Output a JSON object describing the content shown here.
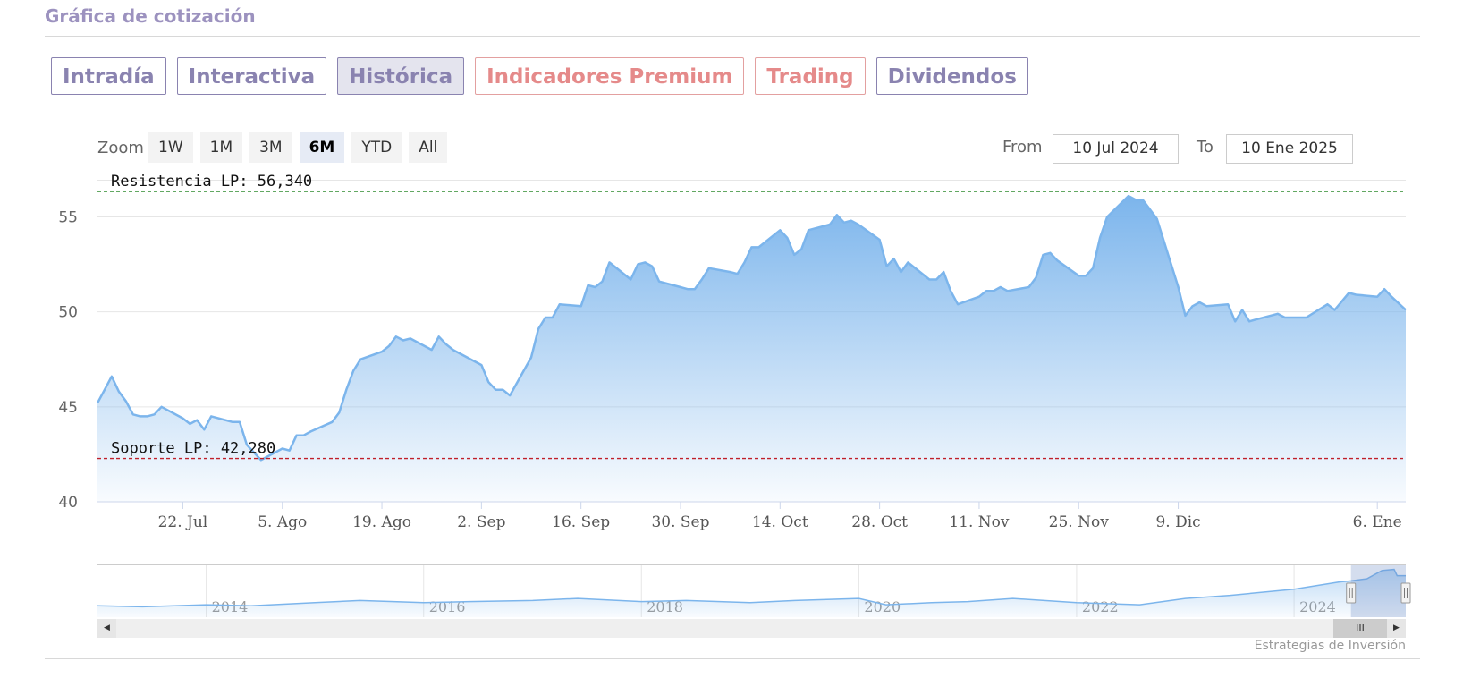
{
  "section": {
    "title": "Gráfica de cotización"
  },
  "tabs": [
    {
      "label": "Intradía",
      "style": "normal"
    },
    {
      "label": "Interactiva",
      "style": "normal"
    },
    {
      "label": "Histórica",
      "style": "active"
    },
    {
      "label": "Indicadores Premium",
      "style": "premium"
    },
    {
      "label": "Trading",
      "style": "premium"
    },
    {
      "label": "Dividendos",
      "style": "normal"
    }
  ],
  "zoom": {
    "label": "Zoom",
    "buttons": [
      "1W",
      "1M",
      "3M",
      "6M",
      "YTD",
      "All"
    ],
    "selected": "6M"
  },
  "range": {
    "from_label": "From",
    "from_value": "10 Jul 2024",
    "to_label": "To",
    "to_value": "10 Ene 2025"
  },
  "scrollbar": {
    "left_arrow": "◀",
    "right_arrow": "▶",
    "thumb": "III"
  },
  "credit": "Estrategias de Inversión",
  "colors": {
    "line": "#7cb5ec",
    "fill_top": "#7cb5ec",
    "resistance": "#2e8b2e",
    "support": "#c0202a",
    "tab_text": "#8a83b0",
    "premium_text": "#e58a8a"
  },
  "chart_data": {
    "type": "area",
    "title": "",
    "xlabel": "",
    "ylabel": "",
    "ylim": [
      40,
      57
    ],
    "yticks": [
      40,
      45,
      50,
      55
    ],
    "xlim": [
      "2024-07-10",
      "2025-01-10"
    ],
    "xticks": [
      {
        "date": "2024-07-22",
        "label": "22. Jul"
      },
      {
        "date": "2024-08-05",
        "label": "5. Ago"
      },
      {
        "date": "2024-08-19",
        "label": "19. Ago"
      },
      {
        "date": "2024-09-02",
        "label": "2. Sep"
      },
      {
        "date": "2024-09-16",
        "label": "16. Sep"
      },
      {
        "date": "2024-09-30",
        "label": "30. Sep"
      },
      {
        "date": "2024-10-14",
        "label": "14. Oct"
      },
      {
        "date": "2024-10-28",
        "label": "28. Oct"
      },
      {
        "date": "2024-11-11",
        "label": "11. Nov"
      },
      {
        "date": "2024-11-25",
        "label": "25. Nov"
      },
      {
        "date": "2024-12-09",
        "label": "9. Dic"
      },
      {
        "date": "2025-01-06",
        "label": "6. Ene"
      }
    ],
    "grid": true,
    "legend": "none",
    "plot_lines": [
      {
        "label": "Resistencia LP: 56,340",
        "value": 56.34,
        "style": "resistance"
      },
      {
        "label": "Soporte LP: 42,280",
        "value": 42.28,
        "style": "support"
      }
    ],
    "series": [
      {
        "points": [
          [
            "2024-07-10",
            45.2
          ],
          [
            "2024-07-11",
            45.9
          ],
          [
            "2024-07-12",
            46.6
          ],
          [
            "2024-07-13",
            45.8
          ],
          [
            "2024-07-14",
            45.3
          ],
          [
            "2024-07-15",
            44.6
          ],
          [
            "2024-07-16",
            44.5
          ],
          [
            "2024-07-17",
            44.5
          ],
          [
            "2024-07-18",
            44.6
          ],
          [
            "2024-07-19",
            45.0
          ],
          [
            "2024-07-22",
            44.4
          ],
          [
            "2024-07-23",
            44.1
          ],
          [
            "2024-07-24",
            44.3
          ],
          [
            "2024-07-25",
            43.8
          ],
          [
            "2024-07-26",
            44.5
          ],
          [
            "2024-07-29",
            44.2
          ],
          [
            "2024-07-30",
            44.2
          ],
          [
            "2024-07-31",
            43.0
          ],
          [
            "2024-08-01",
            42.6
          ],
          [
            "2024-08-02",
            42.2
          ],
          [
            "2024-08-05",
            42.8
          ],
          [
            "2024-08-06",
            42.7
          ],
          [
            "2024-08-07",
            43.5
          ],
          [
            "2024-08-08",
            43.5
          ],
          [
            "2024-08-09",
            43.7
          ],
          [
            "2024-08-12",
            44.2
          ],
          [
            "2024-08-13",
            44.7
          ],
          [
            "2024-08-14",
            45.9
          ],
          [
            "2024-08-15",
            46.9
          ],
          [
            "2024-08-16",
            47.5
          ],
          [
            "2024-08-19",
            47.9
          ],
          [
            "2024-08-20",
            48.2
          ],
          [
            "2024-08-21",
            48.7
          ],
          [
            "2024-08-22",
            48.5
          ],
          [
            "2024-08-23",
            48.6
          ],
          [
            "2024-08-26",
            48.0
          ],
          [
            "2024-08-27",
            48.7
          ],
          [
            "2024-08-28",
            48.3
          ],
          [
            "2024-08-29",
            48.0
          ],
          [
            "2024-08-30",
            47.8
          ],
          [
            "2024-09-02",
            47.2
          ],
          [
            "2024-09-03",
            46.3
          ],
          [
            "2024-09-04",
            45.9
          ],
          [
            "2024-09-05",
            45.9
          ],
          [
            "2024-09-06",
            45.6
          ],
          [
            "2024-09-09",
            47.6
          ],
          [
            "2024-09-10",
            49.1
          ],
          [
            "2024-09-11",
            49.7
          ],
          [
            "2024-09-12",
            49.7
          ],
          [
            "2024-09-13",
            50.4
          ],
          [
            "2024-09-16",
            50.3
          ],
          [
            "2024-09-17",
            51.4
          ],
          [
            "2024-09-18",
            51.3
          ],
          [
            "2024-09-19",
            51.6
          ],
          [
            "2024-09-20",
            52.6
          ],
          [
            "2024-09-23",
            51.7
          ],
          [
            "2024-09-24",
            52.5
          ],
          [
            "2024-09-25",
            52.6
          ],
          [
            "2024-09-26",
            52.4
          ],
          [
            "2024-09-27",
            51.6
          ],
          [
            "2024-09-30",
            51.3
          ],
          [
            "2024-10-01",
            51.2
          ],
          [
            "2024-10-02",
            51.2
          ],
          [
            "2024-10-03",
            51.7
          ],
          [
            "2024-10-04",
            52.3
          ],
          [
            "2024-10-07",
            52.1
          ],
          [
            "2024-10-08",
            52.0
          ],
          [
            "2024-10-09",
            52.6
          ],
          [
            "2024-10-10",
            53.4
          ],
          [
            "2024-10-11",
            53.4
          ],
          [
            "2024-10-14",
            54.3
          ],
          [
            "2024-10-15",
            53.9
          ],
          [
            "2024-10-16",
            53.0
          ],
          [
            "2024-10-17",
            53.3
          ],
          [
            "2024-10-18",
            54.3
          ],
          [
            "2024-10-21",
            54.6
          ],
          [
            "2024-10-22",
            55.1
          ],
          [
            "2024-10-23",
            54.7
          ],
          [
            "2024-10-24",
            54.8
          ],
          [
            "2024-10-25",
            54.6
          ],
          [
            "2024-10-28",
            53.8
          ],
          [
            "2024-10-29",
            52.4
          ],
          [
            "2024-10-30",
            52.8
          ],
          [
            "2024-10-31",
            52.1
          ],
          [
            "2024-11-01",
            52.6
          ],
          [
            "2024-11-04",
            51.7
          ],
          [
            "2024-11-05",
            51.7
          ],
          [
            "2024-11-06",
            52.1
          ],
          [
            "2024-11-07",
            51.1
          ],
          [
            "2024-11-08",
            50.4
          ],
          [
            "2024-11-11",
            50.8
          ],
          [
            "2024-11-12",
            51.1
          ],
          [
            "2024-11-13",
            51.1
          ],
          [
            "2024-11-14",
            51.3
          ],
          [
            "2024-11-15",
            51.1
          ],
          [
            "2024-11-18",
            51.3
          ],
          [
            "2024-11-19",
            51.8
          ],
          [
            "2024-11-20",
            53.0
          ],
          [
            "2024-11-21",
            53.1
          ],
          [
            "2024-11-22",
            52.7
          ],
          [
            "2024-11-25",
            51.9
          ],
          [
            "2024-11-26",
            51.9
          ],
          [
            "2024-11-27",
            52.3
          ],
          [
            "2024-11-28",
            53.9
          ],
          [
            "2024-11-29",
            55.0
          ],
          [
            "2024-12-02",
            56.1
          ],
          [
            "2024-12-03",
            55.9
          ],
          [
            "2024-12-04",
            55.9
          ],
          [
            "2024-12-05",
            55.4
          ],
          [
            "2024-12-06",
            54.9
          ],
          [
            "2024-12-09",
            51.3
          ],
          [
            "2024-12-10",
            49.8
          ],
          [
            "2024-12-11",
            50.3
          ],
          [
            "2024-12-12",
            50.5
          ],
          [
            "2024-12-13",
            50.3
          ],
          [
            "2024-12-16",
            50.4
          ],
          [
            "2024-12-17",
            49.5
          ],
          [
            "2024-12-18",
            50.1
          ],
          [
            "2024-12-19",
            49.5
          ],
          [
            "2024-12-20",
            49.6
          ],
          [
            "2024-12-23",
            49.9
          ],
          [
            "2024-12-24",
            49.7
          ],
          [
            "2024-12-27",
            49.7
          ],
          [
            "2024-12-30",
            50.4
          ],
          [
            "2024-12-31",
            50.1
          ],
          [
            "2025-01-02",
            51.0
          ],
          [
            "2025-01-03",
            50.9
          ],
          [
            "2025-01-06",
            50.8
          ],
          [
            "2025-01-07",
            51.2
          ],
          [
            "2025-01-08",
            50.8
          ],
          [
            "2025-01-10",
            50.1
          ]
        ]
      }
    ],
    "navigator": {
      "xlim": [
        "2013-01-01",
        "2025-01-10"
      ],
      "ylim": [
        10,
        60
      ],
      "year_labels": [
        {
          "date": "2014-01-01",
          "label": "2014"
        },
        {
          "date": "2016-01-01",
          "label": "2016"
        },
        {
          "date": "2018-01-01",
          "label": "2018"
        },
        {
          "date": "2020-01-01",
          "label": "2020"
        },
        {
          "date": "2022-01-01",
          "label": "2022"
        },
        {
          "date": "2024-01-01",
          "label": "2024"
        }
      ],
      "series": [
        [
          "2013-01-01",
          21
        ],
        [
          "2013-06-01",
          20
        ],
        [
          "2014-01-01",
          22
        ],
        [
          "2014-06-01",
          21
        ],
        [
          "2015-01-01",
          24
        ],
        [
          "2015-06-01",
          26
        ],
        [
          "2016-01-01",
          24
        ],
        [
          "2016-06-01",
          25
        ],
        [
          "2017-01-01",
          26
        ],
        [
          "2017-06-01",
          28
        ],
        [
          "2018-01-01",
          25
        ],
        [
          "2018-06-01",
          26
        ],
        [
          "2019-01-01",
          24
        ],
        [
          "2019-06-01",
          26
        ],
        [
          "2020-01-01",
          28
        ],
        [
          "2020-04-01",
          22
        ],
        [
          "2020-09-01",
          24
        ],
        [
          "2021-01-01",
          25
        ],
        [
          "2021-06-01",
          28
        ],
        [
          "2022-01-01",
          24
        ],
        [
          "2022-08-01",
          22
        ],
        [
          "2023-01-01",
          28
        ],
        [
          "2023-06-01",
          31
        ],
        [
          "2024-01-01",
          37
        ],
        [
          "2024-06-01",
          44
        ],
        [
          "2024-07-10",
          45
        ],
        [
          "2024-09-01",
          47
        ],
        [
          "2024-10-22",
          55
        ],
        [
          "2024-12-02",
          56
        ],
        [
          "2024-12-12",
          50
        ],
        [
          "2025-01-10",
          50
        ]
      ]
    }
  }
}
